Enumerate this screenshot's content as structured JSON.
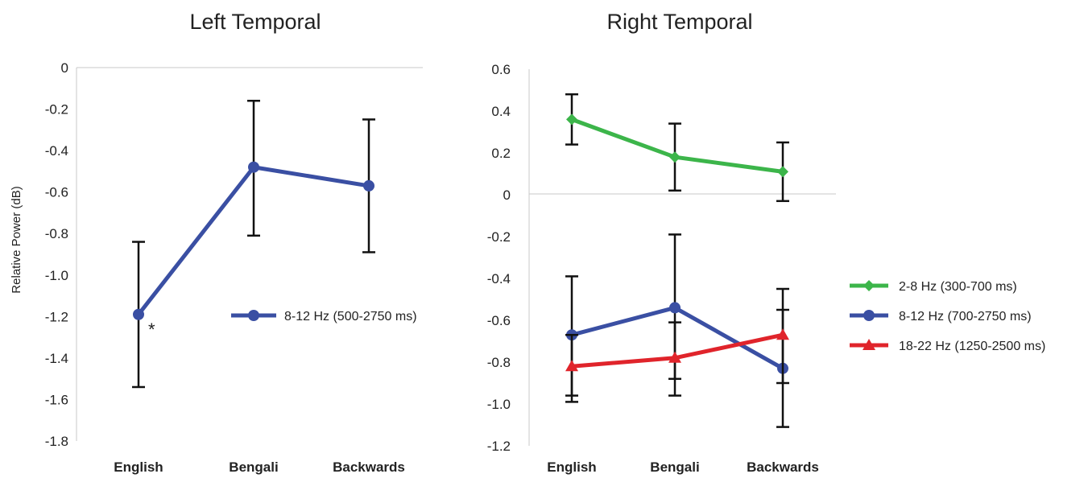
{
  "chart_data": [
    {
      "type": "line",
      "title": "Left Temporal",
      "ylabel": "Relative Power (dB)",
      "xlabel": "",
      "categories": [
        "English",
        "Bengali",
        "Backwards"
      ],
      "ylim": [
        -1.8,
        0
      ],
      "yticks": [
        "0",
        "-0.2",
        "-0.4",
        "-0.6",
        "-0.8",
        "-1.0",
        "-1.2",
        "-1.4",
        "-1.6",
        "-1.8"
      ],
      "ytick_values": [
        0,
        -0.2,
        -0.4,
        -0.6,
        -0.8,
        -1.0,
        -1.2,
        -1.4,
        -1.6,
        -1.8
      ],
      "grid": false,
      "legend_position": "right",
      "annotations": [
        {
          "text": "*",
          "category": "English"
        }
      ],
      "series": [
        {
          "name": "8-12 Hz (500-2750 ms)",
          "color": "#3a4fa3",
          "marker": "circle",
          "values": [
            -1.19,
            -0.48,
            -0.57
          ],
          "err_low": [
            -1.54,
            -0.81,
            -0.89
          ],
          "err_high": [
            -0.84,
            -0.16,
            -0.25
          ]
        }
      ]
    },
    {
      "type": "line",
      "title": "Right Temporal",
      "ylabel": "",
      "xlabel": "",
      "categories": [
        "English",
        "Bengali",
        "Backwards"
      ],
      "ylim": [
        -1.2,
        0.6
      ],
      "yticks": [
        "0.6",
        "0.4",
        "0.2",
        "0",
        "-0.2",
        "-0.4",
        "-0.6",
        "-0.8",
        "-1.0",
        "-1.2"
      ],
      "ytick_values": [
        0.6,
        0.4,
        0.2,
        0,
        -0.2,
        -0.4,
        -0.6,
        -0.8,
        -1.0,
        -1.2
      ],
      "grid": false,
      "legend_position": "right",
      "series": [
        {
          "name": "2-8 Hz (300-700 ms)",
          "color": "#3cb54a",
          "marker": "diamond",
          "values": [
            0.36,
            0.18,
            0.11
          ],
          "err_low": [
            0.24,
            0.02,
            -0.03
          ],
          "err_high": [
            0.48,
            0.34,
            0.25
          ]
        },
        {
          "name": "8-12 Hz (700-2750 ms)",
          "color": "#3a4fa3",
          "marker": "circle",
          "values": [
            -0.67,
            -0.54,
            -0.83
          ],
          "err_low": [
            -0.96,
            -0.88,
            -1.11
          ],
          "err_high": [
            -0.39,
            -0.19,
            -0.55
          ]
        },
        {
          "name": "18-22 Hz (1250-2500 ms)",
          "color": "#e0242b",
          "marker": "triangle",
          "values": [
            -0.82,
            -0.78,
            -0.67
          ],
          "err_low": [
            -0.99,
            -0.96,
            -0.9
          ],
          "err_high": [
            -0.67,
            -0.61,
            -0.45
          ]
        }
      ]
    }
  ]
}
